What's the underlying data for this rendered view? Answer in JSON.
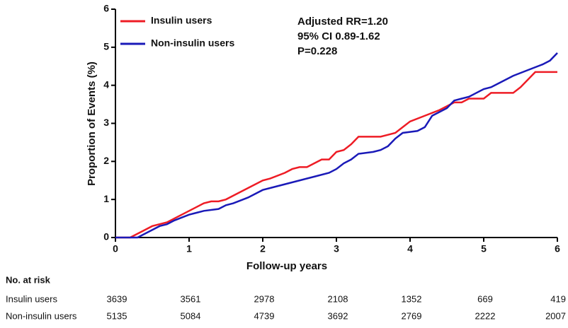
{
  "chart_data": {
    "type": "line",
    "xlabel": "Follow-up years",
    "ylabel": "Proportion of Events (%)",
    "xlim": [
      0,
      6
    ],
    "xticks": [
      0,
      1,
      2,
      3,
      4,
      5,
      6
    ],
    "ylim": [
      0,
      6
    ],
    "yticks": [
      0,
      1,
      2,
      3,
      4,
      5,
      6
    ],
    "annotations": [
      "Adjusted RR=1.20",
      "95% CI 0.89-1.62",
      "P=0.228"
    ],
    "series": [
      {
        "name": "Insulin users",
        "color": "#ee1c25",
        "x": [
          0,
          0.2,
          0.3,
          0.4,
          0.5,
          0.7,
          0.9,
          1.0,
          1.1,
          1.2,
          1.3,
          1.4,
          1.5,
          1.6,
          1.8,
          2.0,
          2.1,
          2.3,
          2.4,
          2.5,
          2.6,
          2.7,
          2.8,
          2.9,
          3.0,
          3.1,
          3.2,
          3.3,
          3.6,
          3.7,
          3.8,
          3.9,
          4.0,
          4.2,
          4.4,
          4.5,
          4.6,
          4.7,
          4.8,
          5.0,
          5.1,
          5.4,
          5.5,
          5.6,
          5.7,
          6.0
        ],
        "values": [
          0,
          0,
          0.1,
          0.2,
          0.3,
          0.4,
          0.6,
          0.7,
          0.8,
          0.9,
          0.95,
          0.95,
          1.0,
          1.1,
          1.3,
          1.5,
          1.55,
          1.7,
          1.8,
          1.85,
          1.85,
          1.95,
          2.05,
          2.05,
          2.25,
          2.3,
          2.45,
          2.65,
          2.65,
          2.7,
          2.75,
          2.9,
          3.05,
          3.2,
          3.35,
          3.45,
          3.55,
          3.55,
          3.65,
          3.65,
          3.8,
          3.8,
          3.95,
          4.15,
          4.35,
          4.35
        ]
      },
      {
        "name": "Non-insulin users",
        "color": "#1a1ab8",
        "x": [
          0,
          0.3,
          0.4,
          0.5,
          0.6,
          0.7,
          0.8,
          1.0,
          1.1,
          1.2,
          1.4,
          1.5,
          1.6,
          1.8,
          2.0,
          2.1,
          2.3,
          2.5,
          2.7,
          2.9,
          3.0,
          3.1,
          3.2,
          3.3,
          3.5,
          3.6,
          3.7,
          3.8,
          3.9,
          4.1,
          4.2,
          4.3,
          4.5,
          4.6,
          4.7,
          4.8,
          4.9,
          5.0,
          5.1,
          5.2,
          5.4,
          5.6,
          5.8,
          5.9,
          6.0
        ],
        "values": [
          0,
          0,
          0.1,
          0.2,
          0.3,
          0.35,
          0.45,
          0.6,
          0.65,
          0.7,
          0.75,
          0.85,
          0.9,
          1.05,
          1.25,
          1.3,
          1.4,
          1.5,
          1.6,
          1.7,
          1.8,
          1.95,
          2.05,
          2.2,
          2.25,
          2.3,
          2.4,
          2.6,
          2.75,
          2.8,
          2.9,
          3.2,
          3.4,
          3.6,
          3.65,
          3.7,
          3.8,
          3.9,
          3.95,
          4.05,
          4.25,
          4.4,
          4.55,
          4.65,
          4.85
        ]
      }
    ],
    "risk_table": {
      "title": "No. at risk",
      "rows": [
        {
          "name": "Insulin users",
          "values": [
            3639,
            3561,
            2978,
            2108,
            1352,
            669,
            419
          ]
        },
        {
          "name": "Non-insulin users",
          "values": [
            5135,
            5084,
            4739,
            3692,
            2769,
            2222,
            2007
          ]
        }
      ]
    }
  }
}
